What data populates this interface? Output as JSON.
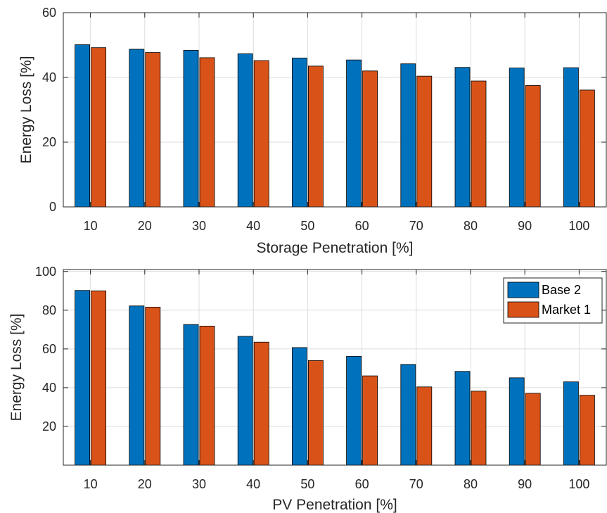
{
  "colors": {
    "series1": "#0072BD",
    "series2": "#D95319",
    "grid": "#dcdcdc",
    "axis": "#262626"
  },
  "chart_data": [
    {
      "type": "bar",
      "categories": [
        "10",
        "20",
        "30",
        "40",
        "50",
        "60",
        "70",
        "80",
        "90",
        "100"
      ],
      "series": [
        {
          "name": "Base 2",
          "values": [
            50.1,
            48.7,
            48.4,
            47.3,
            46.0,
            45.4,
            44.2,
            43.1,
            42.9,
            43.0
          ]
        },
        {
          "name": "Market 1",
          "values": [
            49.2,
            47.7,
            46.1,
            45.2,
            43.5,
            42.0,
            40.4,
            38.9,
            37.5,
            36.1
          ]
        }
      ],
      "xlabel": "Storage Penetration [%]",
      "ylabel": "Energy Loss [%]",
      "ylim": [
        0,
        60
      ],
      "yticks": [
        0,
        20,
        40,
        60
      ],
      "grid": true,
      "legend": "none"
    },
    {
      "type": "bar",
      "categories": [
        "10",
        "20",
        "30",
        "40",
        "50",
        "60",
        "70",
        "80",
        "90",
        "100"
      ],
      "series": [
        {
          "name": "Base 2",
          "values": [
            90.2,
            82.2,
            72.6,
            66.5,
            60.7,
            56.2,
            52.0,
            48.4,
            45.1,
            43.0
          ]
        },
        {
          "name": "Market 1",
          "values": [
            90.0,
            81.6,
            71.8,
            63.5,
            54.0,
            46.1,
            40.4,
            38.2,
            37.1,
            36.1
          ]
        }
      ],
      "xlabel": "PV Penetration [%]",
      "ylabel": "Energy Loss [%]",
      "ylim": [
        0,
        101
      ],
      "yticks": [
        20,
        40,
        60,
        80,
        100
      ],
      "grid": true,
      "legend": "top-right"
    }
  ]
}
